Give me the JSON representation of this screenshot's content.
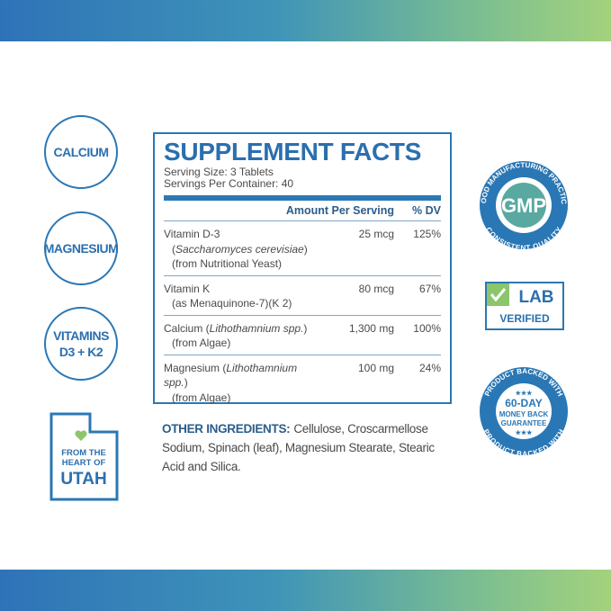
{
  "left_badges": [
    {
      "lines": [
        "CALCIUM"
      ]
    },
    {
      "lines": [
        "MAGNESIUM"
      ]
    },
    {
      "lines": [
        "VITAMINS",
        "D3 + K2"
      ]
    }
  ],
  "utah": {
    "lines": [
      "FROM THE",
      "HEART OF"
    ],
    "name": "UTAH"
  },
  "supplement_facts": {
    "title": "SUPPLEMENT FACTS",
    "serving_size": "Serving Size: 3 Tablets",
    "servings_per_container": "Servings Per Container: 40",
    "header": {
      "amount": "Amount Per Serving",
      "dv": "% DV"
    },
    "rows": [
      {
        "lines": [
          [
            "Vitamin D-3"
          ],
          [
            "(",
            "Saccharomyces cerevisiae",
            ")"
          ],
          [
            "(from Nutritional Yeast)"
          ]
        ],
        "amount": "25 mcg",
        "dv": "125%"
      },
      {
        "lines": [
          [
            "Vitamin K"
          ],
          [
            "(as Menaquinone-7)(K 2)"
          ]
        ],
        "amount": "80 mcg",
        "dv": "67%"
      },
      {
        "lines": [
          [
            "Calcium (",
            "Lithothamnium spp.",
            ")"
          ],
          [
            "(from Algae)"
          ]
        ],
        "amount": "1,300 mg",
        "dv": "100%"
      },
      {
        "lines": [
          [
            "Magnesium (",
            "Lithothamnium spp.",
            ")"
          ],
          [
            "(from Algae)"
          ]
        ],
        "amount": "100 mg",
        "dv": "24%"
      }
    ]
  },
  "other_ingredients": {
    "label": "OTHER INGREDIENTS:",
    "text": "Cellulose, Croscarmellose Sodium, Spinach (leaf), Magnesium Stearate, Stearic Acid and Silica."
  },
  "badges": {
    "gmp": {
      "top": "GOOD MANUFACTURING PRACTICE",
      "center": "GMP",
      "bottom": "CONSISTENT QUALITY"
    },
    "lab": {
      "top": "LAB",
      "bottom": "VERIFIED"
    },
    "guarantee": {
      "top": "PRODUCT BACKED WITH",
      "stars": "★★★",
      "lines": [
        "60-DAY",
        "MONEY BACK",
        "GUARANTEE"
      ],
      "bottom": "PRODUCT BACKED WITH"
    }
  }
}
